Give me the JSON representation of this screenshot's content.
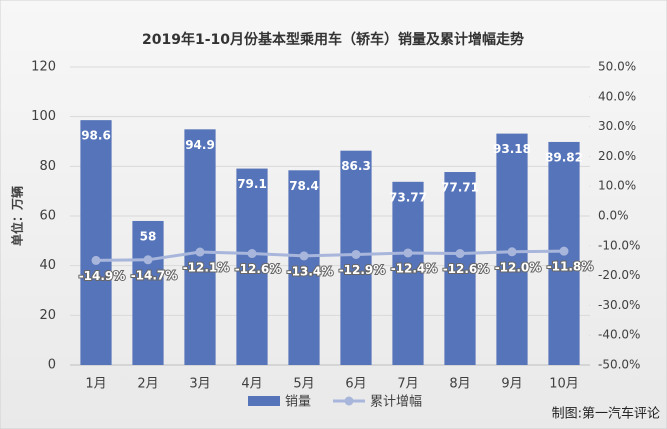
{
  "chart_data": {
    "type": "bar",
    "title": "2019年1-10月份基本型乘用车（轿车）销量及累计增幅走势",
    "ylabel": "单位：万辆",
    "note": "制图:第一汽车评论",
    "categories": [
      "1月",
      "2月",
      "3月",
      "4月",
      "5月",
      "6月",
      "7月",
      "8月",
      "9月",
      "10月"
    ],
    "series": [
      {
        "name": "销量",
        "type": "bar",
        "color": "#5674b9",
        "values": [
          98.6,
          58,
          94.9,
          79.1,
          78.4,
          86.3,
          73.77,
          77.71,
          93.18,
          89.82
        ]
      },
      {
        "name": "累计增幅",
        "type": "line",
        "axis": "y2",
        "color": "#a8b6dc",
        "values": [
          -14.9,
          -14.7,
          -12.1,
          -12.6,
          -13.4,
          -12.9,
          -12.4,
          -12.6,
          -12.0,
          -11.8
        ],
        "value_labels": [
          "-14.9%",
          "-14.7%",
          "-12.1%",
          "-12.6%",
          "-13.4%",
          "-12.9%",
          "-12.4%",
          "-12.6%",
          "-12.0%",
          "-11.8%"
        ]
      }
    ],
    "ylim": [
      0,
      120
    ],
    "yticks": [
      0,
      20,
      40,
      60,
      80,
      100,
      120
    ],
    "y2lim": [
      -50,
      50
    ],
    "y2ticks": [
      {
        "value": -50,
        "label": "-50.0%"
      },
      {
        "value": -40,
        "label": "-40.0%"
      },
      {
        "value": -30,
        "label": "-30.0%"
      },
      {
        "value": -20,
        "label": "-20.0%"
      },
      {
        "value": -10,
        "label": "-10.0%"
      },
      {
        "value": 0,
        "label": "0.0%"
      },
      {
        "value": 10,
        "label": "10.0%"
      },
      {
        "value": 20,
        "label": "20.0%"
      },
      {
        "value": 30,
        "label": "30.0%"
      },
      {
        "value": 40,
        "label": "40.0%"
      },
      {
        "value": 50,
        "label": "50.0%"
      }
    ],
    "grid": true
  }
}
